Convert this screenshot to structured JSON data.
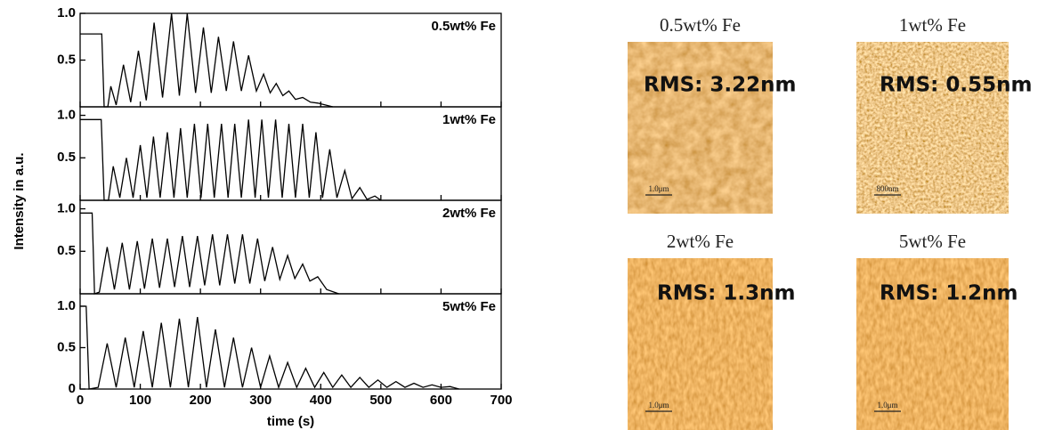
{
  "figure": {
    "ylabel": "Intensity in a.u."
  },
  "chart_data": [
    {
      "type": "line",
      "ylim": [
        0,
        1.0
      ],
      "yticks": [
        0.5,
        {
          "value": 1,
          "label": "1.0"
        }
      ],
      "x": [
        0,
        36,
        40,
        46,
        51,
        60,
        72,
        84,
        97,
        110,
        123,
        137,
        152,
        165,
        178,
        192,
        205,
        218,
        230,
        243,
        255,
        268,
        280,
        293,
        305,
        316,
        326,
        337,
        347,
        358,
        370,
        383,
        395,
        420
      ],
      "series": [
        {
          "name": "0.5wt% Fe",
          "color": "#000000",
          "values": [
            0.78,
            0.78,
            0,
            0,
            0.22,
            0.02,
            0.45,
            0.05,
            0.6,
            0.07,
            0.9,
            0.1,
            1.0,
            0.12,
            1.0,
            0.15,
            0.85,
            0.15,
            0.75,
            0.17,
            0.7,
            0.17,
            0.55,
            0.17,
            0.35,
            0.15,
            0.25,
            0.12,
            0.17,
            0.08,
            0.1,
            0.05,
            0.04,
            0
          ]
        }
      ]
    },
    {
      "type": "line",
      "ylim": [
        0,
        1.1
      ],
      "yticks": [
        0.5,
        {
          "value": 1,
          "label": "1.0"
        }
      ],
      "x": [
        0,
        35,
        40,
        47,
        55,
        66,
        77,
        88,
        100,
        111,
        122,
        133,
        145,
        156,
        167,
        178,
        190,
        201,
        212,
        223,
        235,
        246,
        257,
        268,
        280,
        291,
        302,
        313,
        325,
        336,
        347,
        358,
        370,
        381,
        392,
        403,
        415,
        427,
        440,
        452,
        465,
        477,
        490,
        500
      ],
      "series": [
        {
          "name": "1wt% Fe",
          "color": "#000000",
          "values": [
            0.95,
            0.95,
            0,
            0,
            0.4,
            0.03,
            0.5,
            0.03,
            0.65,
            0.03,
            0.75,
            0.03,
            0.8,
            0.03,
            0.85,
            0.03,
            0.9,
            0.03,
            0.9,
            0.03,
            0.9,
            0.03,
            0.9,
            0.03,
            0.95,
            0.03,
            0.95,
            0.03,
            0.95,
            0.03,
            0.9,
            0.03,
            0.9,
            0.03,
            0.8,
            0.03,
            0.6,
            0.03,
            0.35,
            0.02,
            0.15,
            0.01,
            0.05,
            0
          ]
        }
      ]
    },
    {
      "type": "line",
      "ylim": [
        0,
        1.1
      ],
      "yticks": [
        0.5,
        {
          "value": 1,
          "label": "1.0"
        }
      ],
      "x": [
        0,
        20,
        24,
        32,
        45,
        57,
        70,
        82,
        95,
        107,
        120,
        132,
        145,
        157,
        170,
        182,
        195,
        207,
        220,
        232,
        245,
        257,
        270,
        282,
        295,
        307,
        320,
        332,
        345,
        357,
        370,
        382,
        395,
        410,
        430
      ],
      "series": [
        {
          "name": "2wt% Fe",
          "color": "#000000",
          "values": [
            0.95,
            0.95,
            0,
            0.02,
            0.55,
            0.05,
            0.6,
            0.05,
            0.62,
            0.06,
            0.65,
            0.07,
            0.65,
            0.08,
            0.68,
            0.08,
            0.68,
            0.1,
            0.7,
            0.1,
            0.7,
            0.12,
            0.7,
            0.12,
            0.65,
            0.15,
            0.55,
            0.17,
            0.45,
            0.18,
            0.35,
            0.15,
            0.2,
            0.05,
            0
          ]
        }
      ]
    },
    {
      "type": "line",
      "xlabel": "time (s)",
      "xlim": [
        0,
        700
      ],
      "xticks": [
        0,
        100,
        200,
        300,
        400,
        500,
        600,
        700
      ],
      "ylim": [
        0,
        1.15
      ],
      "yticks": [
        0,
        0.5,
        {
          "value": 1,
          "label": "1.0"
        }
      ],
      "x": [
        0,
        10,
        15,
        30,
        45,
        60,
        75,
        90,
        105,
        120,
        135,
        150,
        165,
        180,
        195,
        210,
        225,
        240,
        255,
        270,
        285,
        300,
        315,
        330,
        345,
        360,
        375,
        390,
        405,
        420,
        435,
        450,
        465,
        480,
        495,
        510,
        525,
        540,
        555,
        570,
        585,
        600,
        615,
        630
      ],
      "series": [
        {
          "name": "5wt% Fe",
          "color": "#000000",
          "values": [
            1.0,
            1.0,
            0,
            0.02,
            0.55,
            0.02,
            0.62,
            0.02,
            0.7,
            0.02,
            0.8,
            0.02,
            0.85,
            0.02,
            0.87,
            0.02,
            0.72,
            0.02,
            0.62,
            0.02,
            0.5,
            0.02,
            0.4,
            0.02,
            0.32,
            0.02,
            0.25,
            0.02,
            0.2,
            0.02,
            0.17,
            0.02,
            0.14,
            0.02,
            0.11,
            0.02,
            0.09,
            0.02,
            0.07,
            0.02,
            0.05,
            0.02,
            0.03,
            0
          ]
        }
      ]
    }
  ],
  "images": [
    {
      "title": "0.5wt% Fe",
      "rms": "RMS: 3.22nm",
      "scale": "1.0μm"
    },
    {
      "title": "1wt% Fe",
      "rms": "RMS: 0.55nm",
      "scale": "800nm"
    },
    {
      "title": "2wt% Fe",
      "rms": "RMS: 1.3nm",
      "scale": "1.0μm"
    },
    {
      "title": "5wt% Fe",
      "rms": "RMS: 1.2nm",
      "scale": "1.0μm"
    }
  ]
}
